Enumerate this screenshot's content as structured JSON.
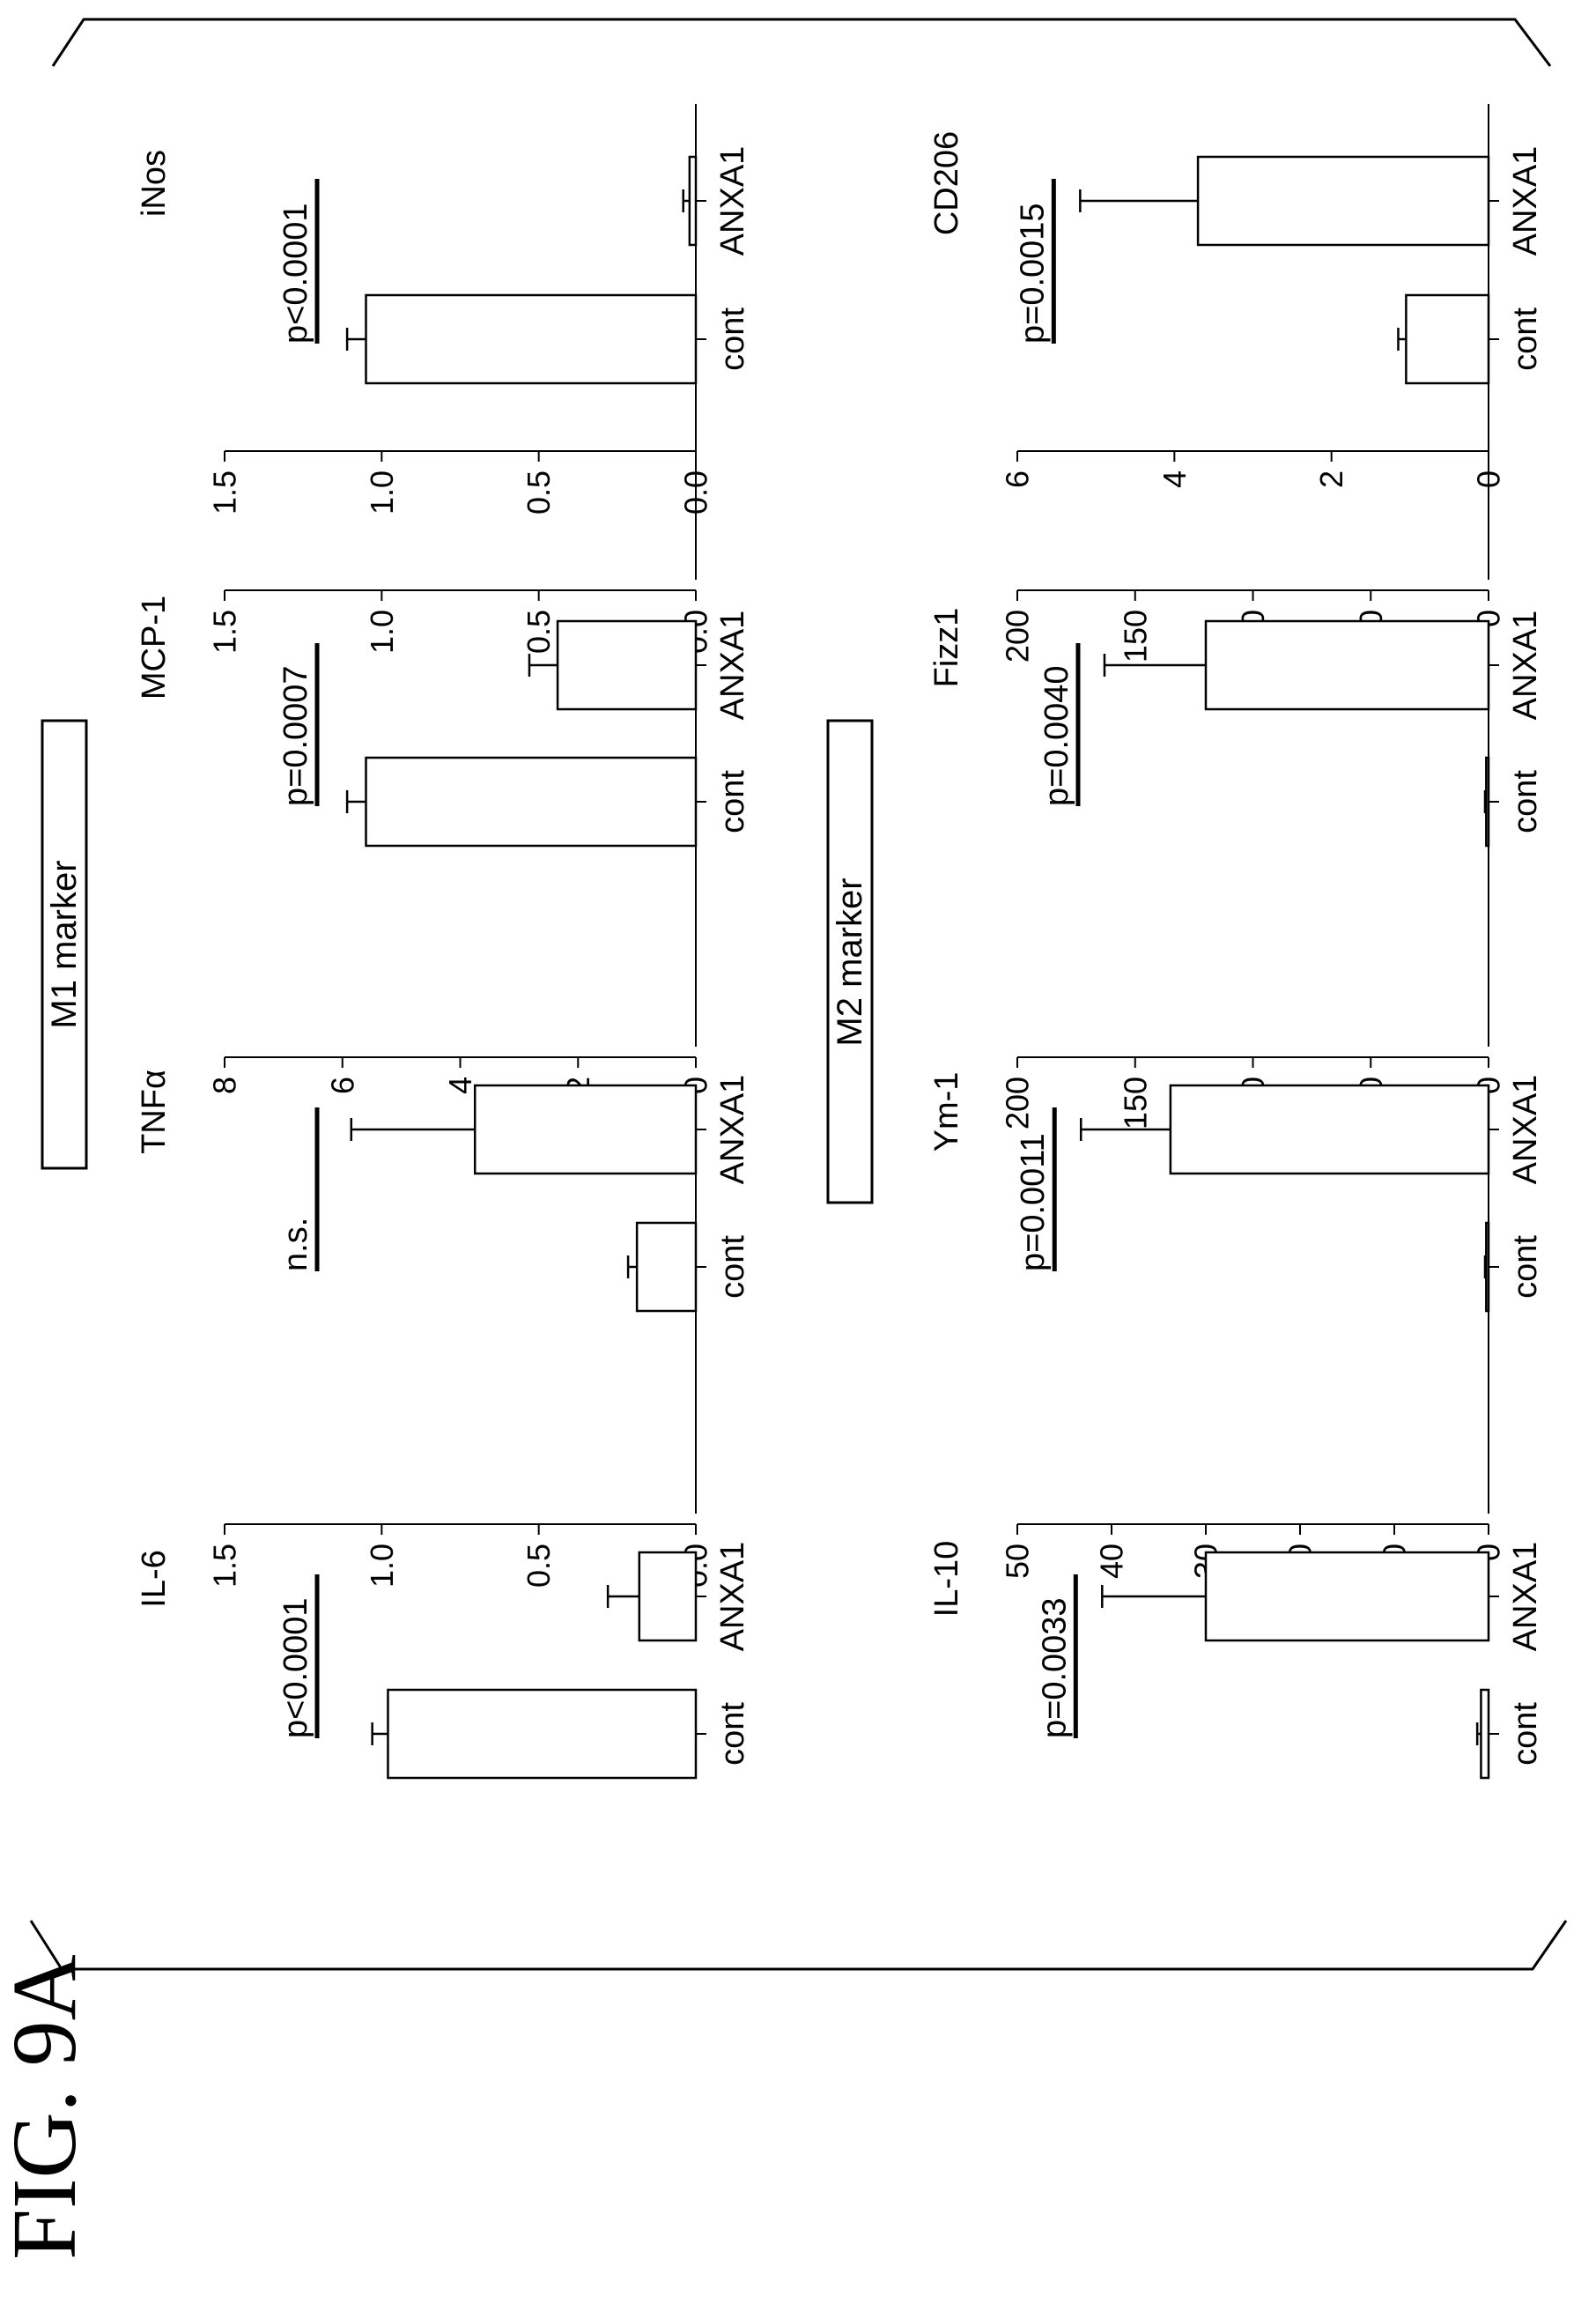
{
  "figure": {
    "label": "FIG. 9A"
  },
  "group_labels": {
    "m1": "M1  marker",
    "m2": "M2  marker"
  },
  "chart_data": [
    {
      "id": "il6",
      "type": "bar",
      "group": "M1",
      "title": "IL-6",
      "categories": [
        "cont",
        "ANXA1"
      ],
      "values": [
        0.98,
        0.18
      ],
      "errors": [
        0.05,
        0.1
      ],
      "ylim": [
        0,
        1.5
      ],
      "yticks": [
        0.0,
        0.5,
        1.0,
        1.5
      ],
      "ytick_labels": [
        "0.0",
        "0.5",
        "1.0",
        "1.5"
      ],
      "annotation": "p<0.0001"
    },
    {
      "id": "tnfa",
      "type": "bar",
      "group": "M1",
      "title": "TNFα",
      "categories": [
        "cont",
        "ANXA1"
      ],
      "values": [
        1.0,
        3.75
      ],
      "errors": [
        0.15,
        2.1
      ],
      "ylim": [
        0,
        8
      ],
      "yticks": [
        0,
        2,
        4,
        6,
        8
      ],
      "ytick_labels": [
        "0",
        "2",
        "4",
        "6",
        "8"
      ],
      "annotation": "n.s."
    },
    {
      "id": "mcp1",
      "type": "bar",
      "group": "M1",
      "title": "MCP-1",
      "categories": [
        "cont",
        "ANXA1"
      ],
      "values": [
        1.05,
        0.44
      ],
      "errors": [
        0.06,
        0.09
      ],
      "ylim": [
        0,
        1.5
      ],
      "yticks": [
        0.0,
        0.5,
        1.0,
        1.5
      ],
      "ytick_labels": [
        "0.0",
        "0.5",
        "1.0",
        "1.5"
      ],
      "annotation": "p=0.0007"
    },
    {
      "id": "inos",
      "type": "bar",
      "group": "M1",
      "title": "iNos",
      "categories": [
        "cont",
        "ANXA1"
      ],
      "values": [
        1.05,
        0.02
      ],
      "errors": [
        0.06,
        0.02
      ],
      "ylim": [
        0,
        1.5
      ],
      "yticks": [
        0.0,
        0.5,
        1.0,
        1.5
      ],
      "ytick_labels": [
        "0.0",
        "0.5",
        "1.0",
        "1.5"
      ],
      "annotation": "p<0.0001"
    },
    {
      "id": "il10",
      "type": "bar",
      "group": "M2",
      "title": "IL-10",
      "categories": [
        "cont",
        "ANXA1"
      ],
      "values": [
        0.8,
        30.0
      ],
      "errors": [
        0.4,
        11.0
      ],
      "ylim": [
        0,
        50
      ],
      "yticks": [
        0,
        10,
        20,
        30,
        40,
        50
      ],
      "ytick_labels": [
        "0",
        "10",
        "20",
        "30",
        "40",
        "50"
      ],
      "annotation": "p=0.0033"
    },
    {
      "id": "ym1",
      "type": "bar",
      "group": "M2",
      "title": "Ym-1",
      "categories": [
        "cont",
        "ANXA1"
      ],
      "values": [
        1.0,
        135.0
      ],
      "errors": [
        0.5,
        38.0
      ],
      "ylim": [
        0,
        200
      ],
      "yticks": [
        0,
        50,
        100,
        150,
        200
      ],
      "ytick_labels": [
        "0",
        "50",
        "100",
        "150",
        "200"
      ],
      "annotation": "p=0.0011"
    },
    {
      "id": "fizz1",
      "type": "bar",
      "group": "M2",
      "title": "Fizz1",
      "categories": [
        "cont",
        "ANXA1"
      ],
      "values": [
        1.0,
        120.0
      ],
      "errors": [
        0.5,
        43.0
      ],
      "ylim": [
        0,
        200
      ],
      "yticks": [
        0,
        50,
        100,
        150,
        200
      ],
      "ytick_labels": [
        "0",
        "50",
        "100",
        "150",
        "200"
      ],
      "annotation": "p=0.0040"
    },
    {
      "id": "cd206",
      "type": "bar",
      "group": "M2",
      "title": "CD206",
      "categories": [
        "cont",
        "ANXA1"
      ],
      "values": [
        1.05,
        3.7
      ],
      "errors": [
        0.1,
        1.5
      ],
      "ylim": [
        0,
        6
      ],
      "yticks": [
        0,
        2,
        4,
        6
      ],
      "ytick_labels": [
        "0",
        "2",
        "4",
        "6"
      ],
      "annotation": "p=0.0015"
    }
  ]
}
